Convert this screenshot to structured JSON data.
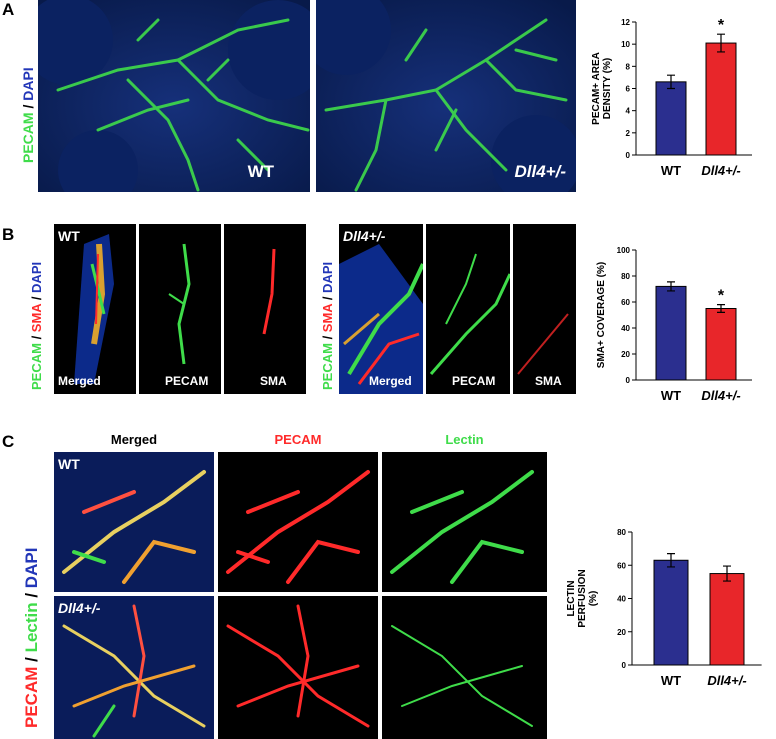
{
  "colors": {
    "wt": "#2b2f8f",
    "dll4": "#e8262a",
    "green": "#3fdc4a",
    "red": "#ff2a2a",
    "blue": "#2236b8",
    "bar_outline": "#000000"
  },
  "panels": {
    "A": {
      "letter": "A",
      "stain": {
        "p1": "PECAM",
        "p2": " / ",
        "p3": "DAPI"
      },
      "img1_caption": "WT",
      "img2_caption": "Dll4+/-"
    },
    "B": {
      "letter": "B",
      "stain": {
        "p1": "PECAM",
        "p2": " / ",
        "p3": "SMA",
        "p4": " / ",
        "p5": "DAPI"
      },
      "wt_tag": "WT",
      "dll4_tag": "Dll4+/-",
      "sub_captions": [
        "Merged",
        "PECAM",
        "SMA"
      ]
    },
    "C": {
      "letter": "C",
      "stain": {
        "p1": "PECAM",
        "p2": " / ",
        "p3": "Lectin",
        "p4": " / ",
        "p5": "DAPI"
      },
      "col_heads": [
        "Merged",
        "PECAM",
        "Lectin"
      ],
      "wt_tag": "WT",
      "dll4_tag": "Dll4+/-"
    }
  },
  "chart_data": [
    {
      "type": "bar",
      "panel": "A",
      "categories": [
        "WT",
        "Dll4+/-"
      ],
      "values": [
        6.6,
        10.1
      ],
      "errors": [
        0.6,
        0.8
      ],
      "ylabel": "PECAM+ AREA DENSITY (%)",
      "ylim": [
        0,
        12
      ],
      "ticks": [
        "0",
        "2",
        "4",
        "6",
        "8",
        "10",
        "12"
      ],
      "sig": [
        "",
        "*"
      ]
    },
    {
      "type": "bar",
      "panel": "B",
      "categories": [
        "WT",
        "Dll4+/-"
      ],
      "values": [
        72,
        55
      ],
      "errors": [
        3.5,
        3
      ],
      "ylabel": "SMA+ COVERAGE (%)",
      "ylim": [
        0,
        100
      ],
      "ticks": [
        "0",
        "20",
        "40",
        "60",
        "80",
        "100"
      ],
      "sig": [
        "",
        "*"
      ]
    },
    {
      "type": "bar",
      "panel": "C",
      "categories": [
        "WT",
        "Dll4+/-"
      ],
      "values": [
        63,
        55
      ],
      "errors": [
        4,
        4.5
      ],
      "ylabel": "LECTIN PERFUSION (%)",
      "ylim": [
        0,
        80
      ],
      "ticks": [
        "0",
        "20",
        "40",
        "60",
        "80"
      ],
      "sig": [
        "",
        ""
      ]
    }
  ]
}
